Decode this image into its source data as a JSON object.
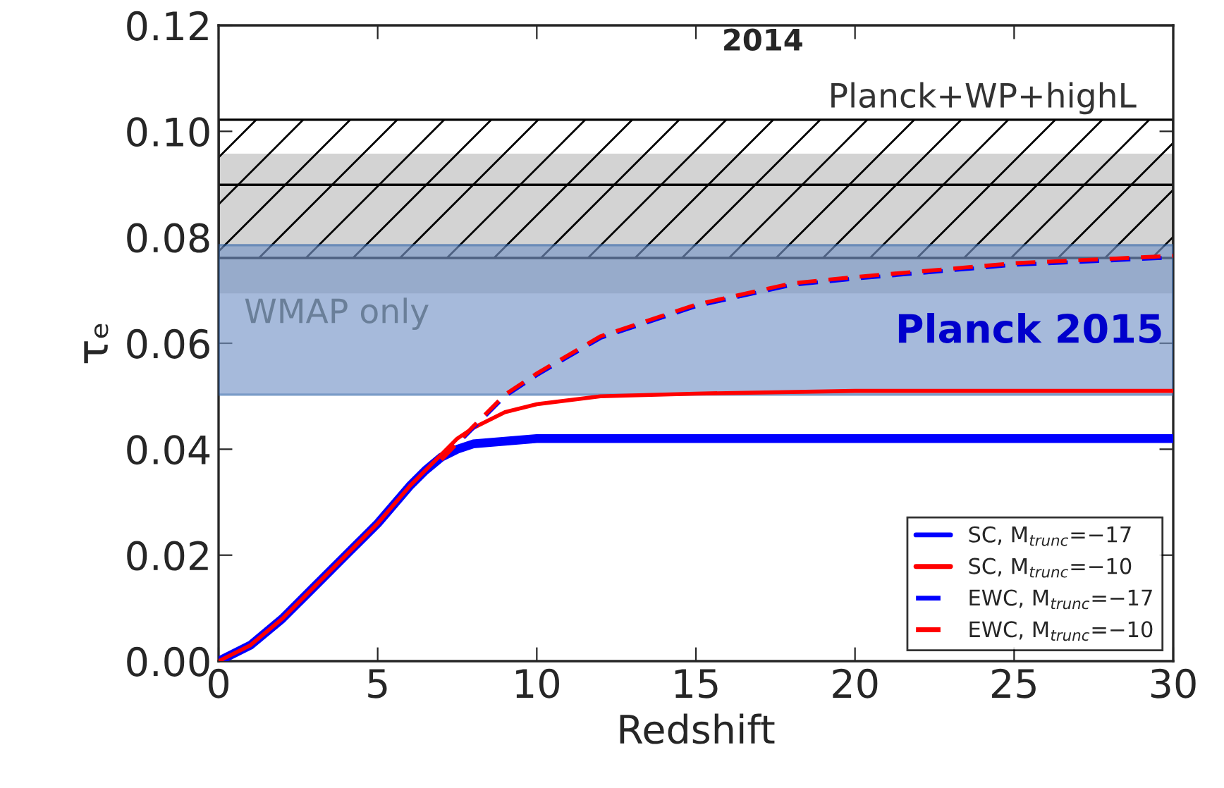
{
  "chart_data": {
    "type": "line",
    "xlabel": "Redshift",
    "ylabel": "τₑ",
    "xlim": [
      0,
      30
    ],
    "xticks": [
      0,
      5,
      10,
      15,
      20,
      25,
      30
    ],
    "ylim": [
      0,
      0.12
    ],
    "yticks": [
      {
        "value": 0,
        "label": "0.00"
      },
      {
        "value": 0.02,
        "label": "0.02"
      },
      {
        "value": 0.04,
        "label": "0.04"
      },
      {
        "value": 0.06,
        "label": "0.06"
      },
      {
        "value": 0.08,
        "label": "0.08"
      },
      {
        "value": 0.1,
        "label": "0.10"
      },
      {
        "value": 0.12,
        "label": "0.12"
      }
    ],
    "grid": false,
    "legend": "bottom right",
    "series": [
      {
        "name": "SC, M$_{trunc}$=−17",
        "color": "#0000ff",
        "line_style": "solid",
        "x": [
          0,
          1,
          2,
          3,
          4,
          5,
          6,
          6.5,
          7,
          7.5,
          8,
          9,
          10,
          15,
          20,
          25,
          30
        ],
        "values": [
          0,
          0.003,
          0.008,
          0.014,
          0.02,
          0.026,
          0.033,
          0.036,
          0.0385,
          0.04,
          0.041,
          0.0415,
          0.042,
          0.042,
          0.042,
          0.042,
          0.042
        ]
      },
      {
        "name": "SC, M$_{trunc}$=−10",
        "color": "#ff0000",
        "line_style": "solid",
        "x": [
          0,
          1,
          2,
          3,
          4,
          5,
          6,
          6.5,
          7,
          7.5,
          8,
          9,
          10,
          12,
          15,
          20,
          25,
          30
        ],
        "values": [
          0,
          0.003,
          0.008,
          0.014,
          0.02,
          0.026,
          0.033,
          0.036,
          0.039,
          0.042,
          0.044,
          0.047,
          0.0485,
          0.05,
          0.0505,
          0.051,
          0.051,
          0.051
        ]
      },
      {
        "name": "EWC, M$_{trunc}$=−17",
        "color": "#0000ff",
        "line_style": "dashed",
        "x": [
          7,
          8,
          9,
          10,
          12,
          15,
          18,
          20,
          25,
          30
        ],
        "values": [
          0.038,
          0.044,
          0.05,
          0.054,
          0.061,
          0.067,
          0.071,
          0.0722,
          0.0748,
          0.0762
        ]
      },
      {
        "name": "EWC, M$_{trunc}$=−10",
        "color": "#ff0000",
        "line_style": "dashed",
        "x": [
          7,
          8,
          9,
          10,
          12,
          15,
          18,
          20,
          25,
          30
        ],
        "values": [
          0.038,
          0.0443,
          0.0503,
          0.0543,
          0.0613,
          0.0673,
          0.0713,
          0.0725,
          0.0751,
          0.0765
        ]
      }
    ],
    "bands": [
      {
        "axis": "y",
        "from": 0.0694,
        "to": 0.0958,
        "label": "WMAP only",
        "color": "#d3d3d3"
      },
      {
        "axis": "y",
        "from": 0.0761,
        "to": 0.1022,
        "label": "Planck+WP+highL",
        "color": "none"
      },
      {
        "axis": "y",
        "from": 0.0503,
        "to": 0.0785,
        "label": "Planck 2015",
        "color": "#7896c8"
      }
    ],
    "ref_lines": [
      {
        "axis": "y",
        "value": 0.0899,
        "color": "#000000"
      }
    ],
    "annotations": [
      "2014"
    ]
  }
}
